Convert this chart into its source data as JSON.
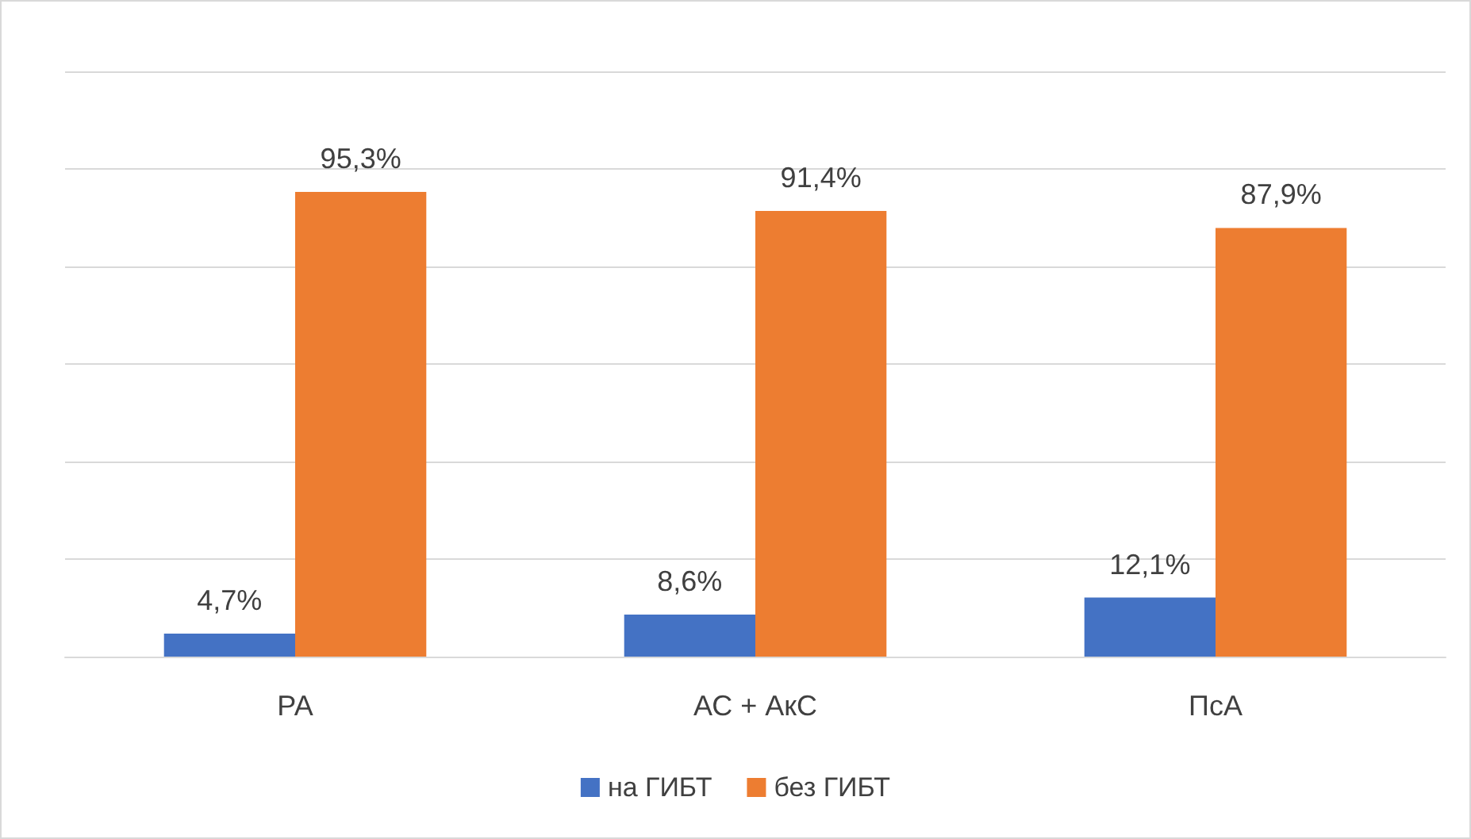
{
  "chart_data": {
    "type": "bar",
    "categories": [
      "РА",
      "АС + АкС",
      "ПсА"
    ],
    "series": [
      {
        "name": "на ГИБТ",
        "color": "#4472c4",
        "values": [
          4.7,
          8.6,
          12.1
        ],
        "value_labels": [
          "4,7%",
          "8,6%",
          "12,1%"
        ]
      },
      {
        "name": "без ГИБТ",
        "color": "#ed7d31",
        "values": [
          95.3,
          91.4,
          87.9
        ],
        "value_labels": [
          "95,3%",
          "91,4%",
          "87,9%"
        ]
      }
    ],
    "ylim": [
      0,
      120
    ],
    "yticks": [
      {
        "value": 0,
        "label": null
      },
      {
        "value": 20,
        "label": null
      },
      {
        "value": 40,
        "label": null
      },
      {
        "value": 60,
        "label": null
      },
      {
        "value": 80,
        "label": null
      },
      {
        "value": 100,
        "label": null
      },
      {
        "value": 120,
        "label": null
      }
    ],
    "tick_labels": "x",
    "grid": "y",
    "legend": "bottom"
  }
}
